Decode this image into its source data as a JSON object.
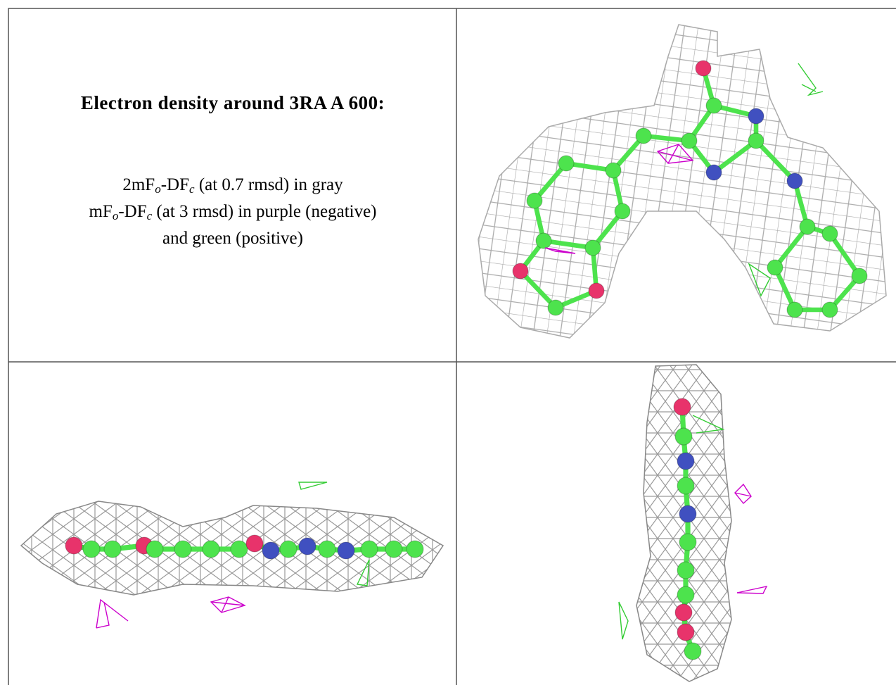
{
  "caption": {
    "title": "Electron density around 3RA A 600:",
    "lines": [
      [
        {
          "text": "2mF"
        },
        {
          "text": "o",
          "sub": true
        },
        {
          "text": "-DF"
        },
        {
          "text": "c",
          "sub": true
        },
        {
          "text": " (at 0.7 rmsd) in gray"
        }
      ],
      [
        {
          "text": "mF"
        },
        {
          "text": "o",
          "sub": true
        },
        {
          "text": "-DF"
        },
        {
          "text": "c",
          "sub": true
        },
        {
          "text": " (at 3 rmsd) in purple (negative)"
        }
      ],
      [
        {
          "text": "and green (positive)"
        }
      ]
    ]
  }
}
